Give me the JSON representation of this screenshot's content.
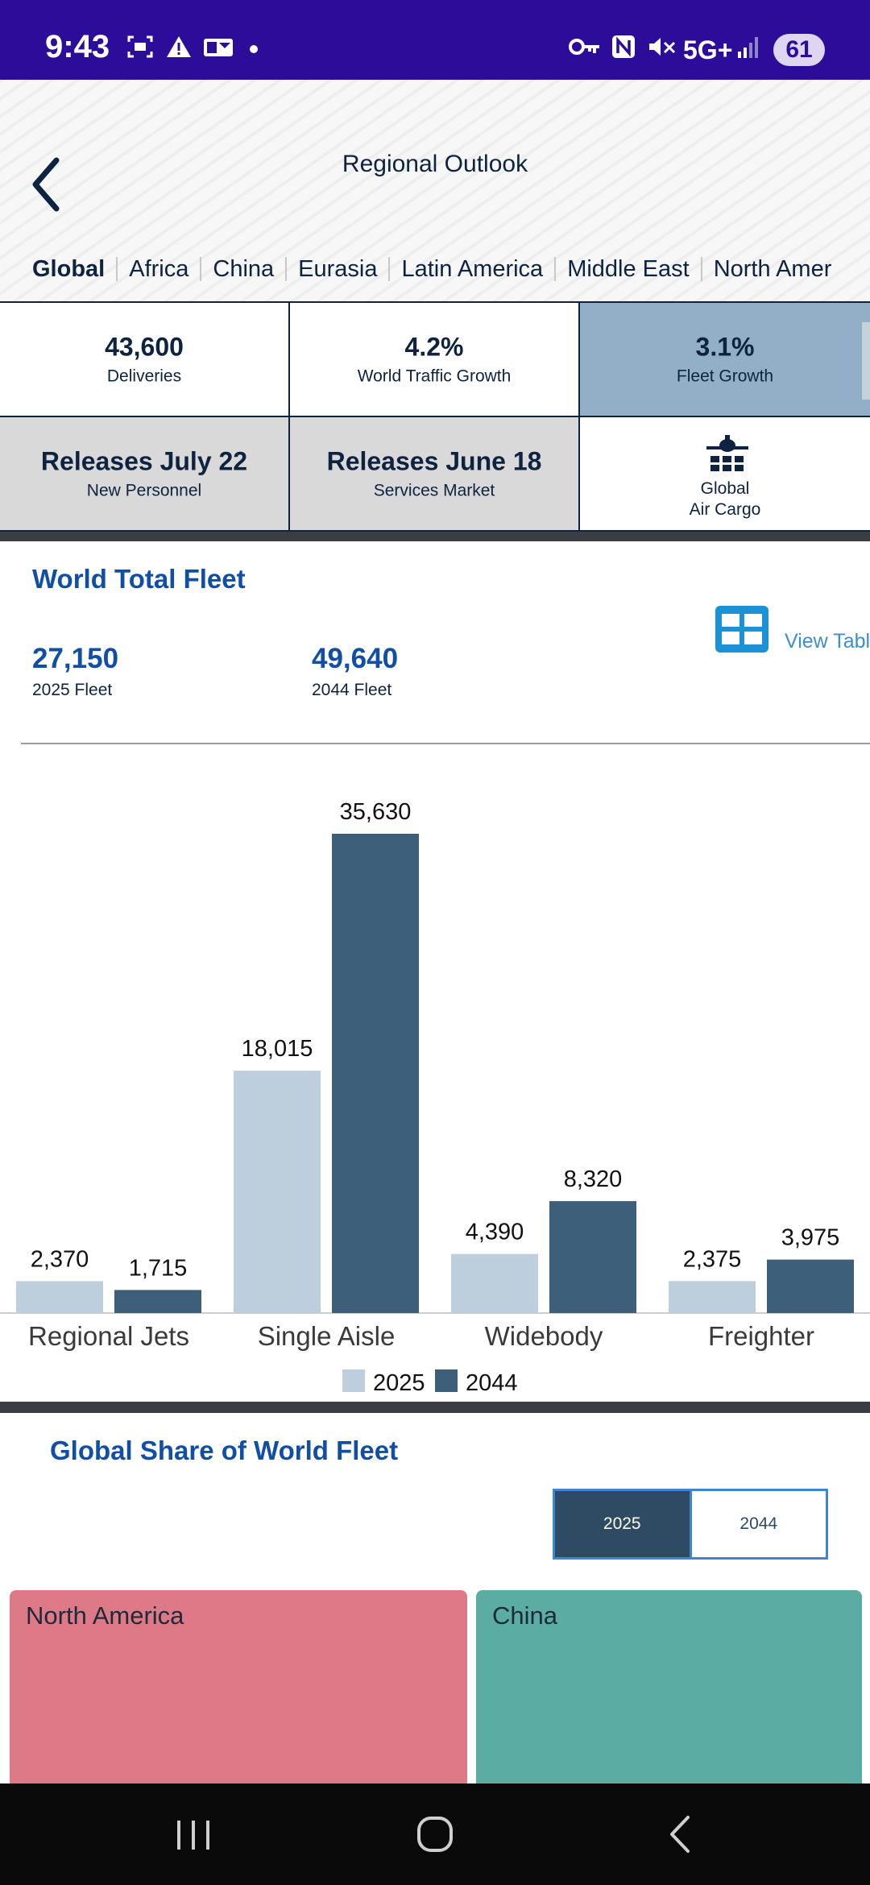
{
  "status_bar": {
    "time": "9:43",
    "network": "5G+",
    "battery": "61"
  },
  "header": {
    "title": "Regional Outlook",
    "tabs": [
      "Global",
      "Africa",
      "China",
      "Eurasia",
      "Latin America",
      "Middle East",
      "North Amer"
    ]
  },
  "stats": [
    {
      "value": "43,600",
      "label": "Deliveries"
    },
    {
      "value": "4.2%",
      "label": "World Traffic Growth"
    },
    {
      "value": "3.1%",
      "label": "Fleet Growth"
    }
  ],
  "links": [
    {
      "value": "Releases July 22",
      "label": "New Personnel"
    },
    {
      "value": "Releases June 18",
      "label": "Services Market"
    },
    {
      "line1": "Global",
      "line2": "Air Cargo",
      "icon": "airplane-cargo-icon"
    }
  ],
  "fleet": {
    "title": "World Total Fleet",
    "fleet_2025_value": "27,150",
    "fleet_2025_label": "2025 Fleet",
    "fleet_2044_value": "49,640",
    "fleet_2044_label": "2044 Fleet",
    "view_table_label": "View Table"
  },
  "chart_data": {
    "type": "bar",
    "categories": [
      "Regional Jets",
      "Single Aisle",
      "Widebody",
      "Freighter"
    ],
    "series": [
      {
        "name": "2025",
        "values": [
          2370,
          18015,
          4390,
          2375
        ],
        "labels": [
          "2,370",
          "18,015",
          "4,390",
          "2,375"
        ],
        "color": "#bdcedc"
      },
      {
        "name": "2044",
        "values": [
          1715,
          35630,
          8320,
          3975
        ],
        "labels": [
          "1,715",
          "35,630",
          "8,320",
          "3,975"
        ],
        "color": "#3e5f7a"
      }
    ],
    "ylim": [
      0,
      35630
    ],
    "grid": false,
    "legend": "bottom-center"
  },
  "share": {
    "title": "Global Share of World Fleet",
    "year_active": "2025",
    "year_inactive": "2044",
    "tiles": [
      {
        "name": "North America",
        "color": "#de7a87"
      },
      {
        "name": "China",
        "color": "#5bada4"
      }
    ]
  },
  "colors": {
    "status_bar": "#2c0d9a",
    "accent_blue": "#114ea6",
    "highlight_cell": "#93afc7",
    "grey_cell": "#d9d9d9"
  }
}
